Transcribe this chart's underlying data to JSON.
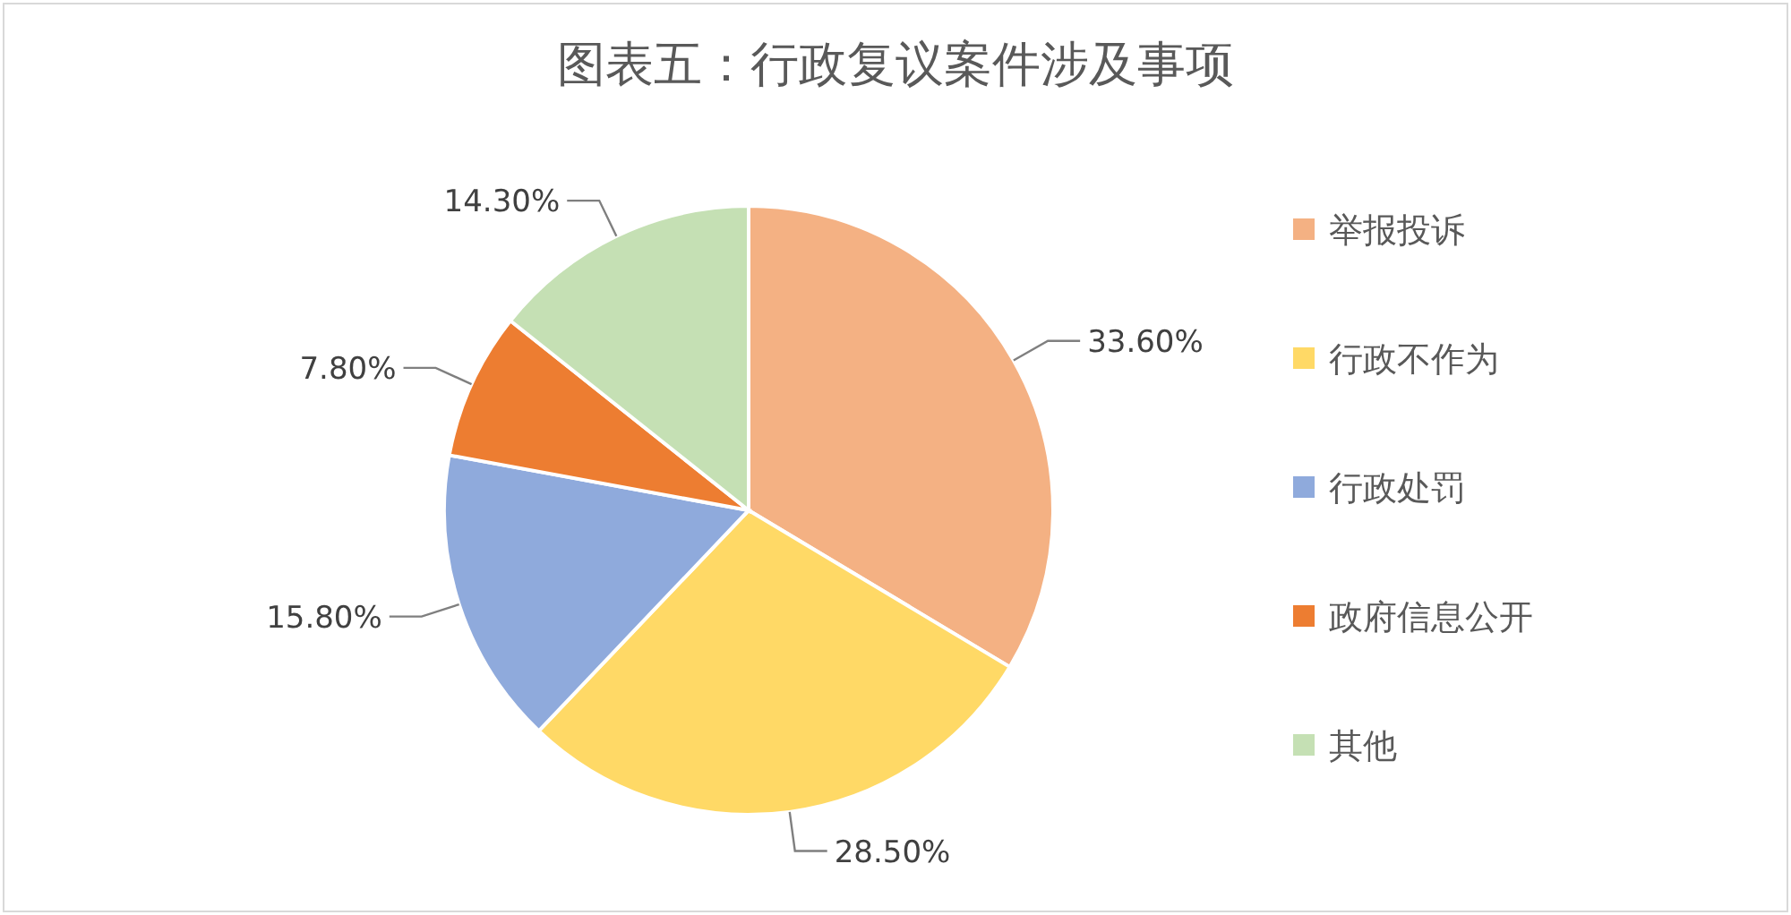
{
  "chart_data": {
    "type": "pie",
    "title": "图表五：行政复议案件涉及事项",
    "categories": [
      "举报投诉",
      "行政不作为",
      "行政处罚",
      "政府信息公开",
      "其他"
    ],
    "values": [
      33.6,
      28.5,
      15.8,
      7.8,
      14.3
    ],
    "colors": [
      "#f4b183",
      "#ffd966",
      "#8faadc",
      "#ed7d31",
      "#c5e0b4"
    ],
    "value_labels": [
      "33.60%",
      "28.50%",
      "15.80%",
      "7.80%",
      "14.30%"
    ],
    "legend": "right"
  }
}
